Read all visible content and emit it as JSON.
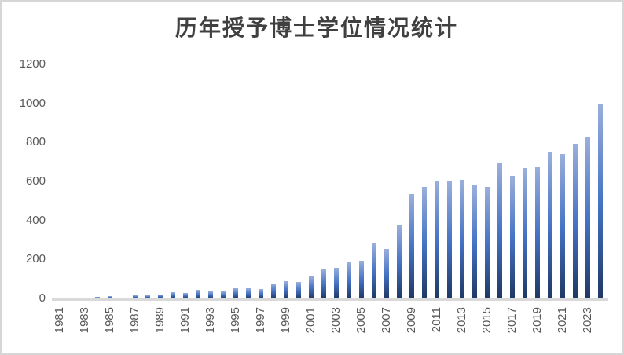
{
  "chart": {
    "title": "历年授予博士学位情况统计"
  },
  "chart_data": {
    "type": "bar",
    "title": "历年授予博士学位情况统计",
    "categories": [
      1981,
      1982,
      1983,
      1984,
      1985,
      1986,
      1987,
      1988,
      1989,
      1990,
      1991,
      1992,
      1993,
      1994,
      1995,
      1996,
      1997,
      1998,
      1999,
      2000,
      2001,
      2002,
      2003,
      2004,
      2005,
      2006,
      2007,
      2008,
      2009,
      2010,
      2011,
      2012,
      2013,
      2014,
      2015,
      2016,
      2017,
      2018,
      2019,
      2020,
      2021,
      2022,
      2023,
      2024
    ],
    "values": [
      0,
      0,
      2,
      8,
      12,
      5,
      16,
      18,
      22,
      34,
      30,
      45,
      36,
      37,
      52,
      54,
      47,
      76,
      90,
      86,
      113,
      149,
      156,
      185,
      195,
      283,
      252,
      375,
      535,
      572,
      605,
      601,
      607,
      578,
      573,
      692,
      628,
      670,
      676,
      754,
      739,
      792,
      828,
      1000
    ],
    "xlabel": "",
    "ylabel": "",
    "ylim": [
      0,
      1200
    ],
    "yticks": [
      0,
      200,
      400,
      600,
      800,
      1000,
      1200
    ],
    "xtick_labels": [
      "1981",
      "1983",
      "1985",
      "1987",
      "1989",
      "1991",
      "1993",
      "1995",
      "1997",
      "1999",
      "2001",
      "2003",
      "2005",
      "2007",
      "2009",
      "2011",
      "2013",
      "2015",
      "2017",
      "2019",
      "2021",
      "2023"
    ],
    "xtick_every": 2,
    "grid": false,
    "legend": "none",
    "colors": {
      "bar_gradient_top": "#9bafdb",
      "bar_gradient_mid": "#4472c4",
      "bar_gradient_bottom": "#1f3864",
      "axis_line": "#d9d9d9",
      "tick_labels": "#595959",
      "title": "#404040",
      "frame_border": "#d6d6d6"
    }
  }
}
